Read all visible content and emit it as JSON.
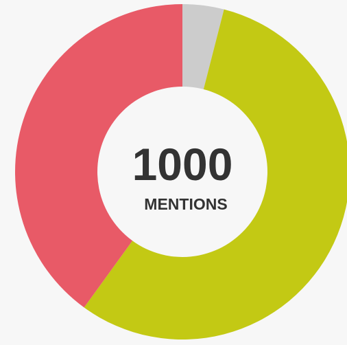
{
  "chart_data": {
    "type": "donut",
    "values": [
      4,
      56,
      40
    ],
    "colors": [
      "#cccccc",
      "#c3c914",
      "#e85a67"
    ],
    "center_value": "1000",
    "center_label": "MENTIONS"
  }
}
